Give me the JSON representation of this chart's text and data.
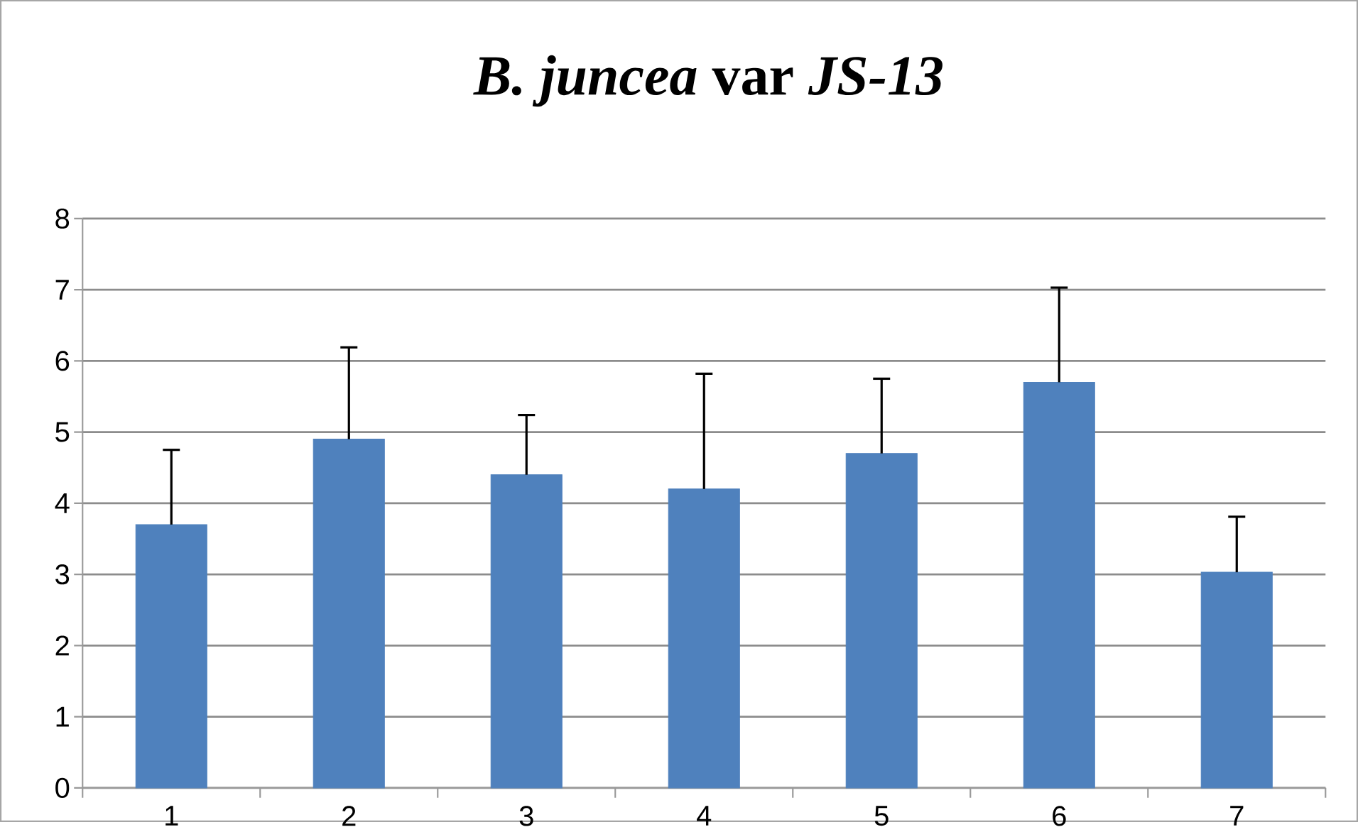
{
  "chart_data": {
    "type": "bar",
    "title": "*B. juncea* var *JS-13*",
    "categories": [
      "1",
      "2",
      "3",
      "4",
      "5",
      "6",
      "7"
    ],
    "values": [
      3.7,
      4.9,
      4.4,
      4.2,
      4.7,
      5.7,
      3.03
    ],
    "errors": [
      [
        3.7,
        4.75
      ],
      [
        4.9,
        6.19
      ],
      [
        4.4,
        5.24
      ],
      [
        4.2,
        5.82
      ],
      [
        4.7,
        5.75
      ],
      [
        5.7,
        7.03
      ],
      [
        3.03,
        3.81
      ]
    ],
    "color": "#4f81bd",
    "ylim": [
      0,
      8
    ],
    "yticks": [
      0,
      1,
      2,
      3,
      4,
      5,
      6,
      7,
      8
    ],
    "grid": "y"
  }
}
